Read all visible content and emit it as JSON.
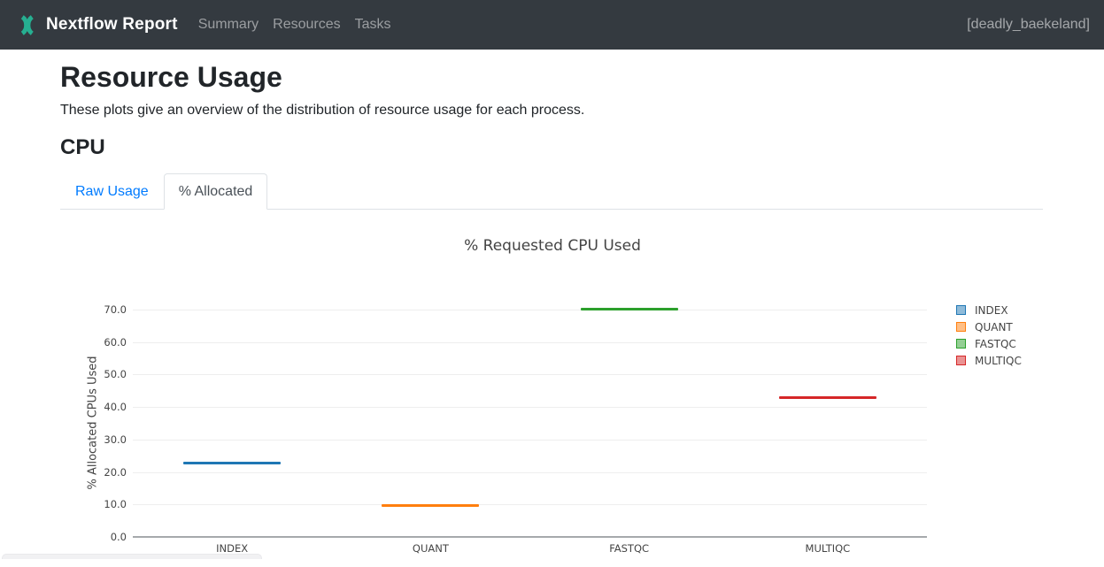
{
  "navbar": {
    "brand": "Nextflow Report",
    "items": [
      {
        "label": "Summary"
      },
      {
        "label": "Resources"
      },
      {
        "label": "Tasks"
      }
    ],
    "run_name": "[deadly_baekeland]",
    "brand_color": "#26af91",
    "background_color": "#343a40"
  },
  "page": {
    "title": "Resource Usage",
    "description": "These plots give an overview of the distribution of resource usage for each process.",
    "section_heading": "CPU"
  },
  "tabs": [
    {
      "label": "Raw Usage",
      "active": false
    },
    {
      "label": "% Allocated",
      "active": true
    }
  ],
  "chart_data": {
    "type": "box",
    "title": "% Requested CPU Used",
    "xlabel": "",
    "ylabel": "% Allocated CPUs Used",
    "categories": [
      "INDEX",
      "QUANT",
      "FASTQC",
      "MULTIQC"
    ],
    "series": [
      {
        "name": "INDEX",
        "color": "#1f77b4",
        "median": 22.8
      },
      {
        "name": "QUANT",
        "color": "#ff7f0e",
        "median": 9.8
      },
      {
        "name": "FASTQC",
        "color": "#2ca02c",
        "median": 70.1
      },
      {
        "name": "MULTIQC",
        "color": "#d62728",
        "median": 42.8
      }
    ],
    "ylim": [
      0,
      70
    ],
    "yticks": [
      "0.0",
      "10.0",
      "20.0",
      "30.0",
      "40.0",
      "50.0",
      "60.0",
      "70.0"
    ],
    "grid": true,
    "legend_position": "right"
  }
}
